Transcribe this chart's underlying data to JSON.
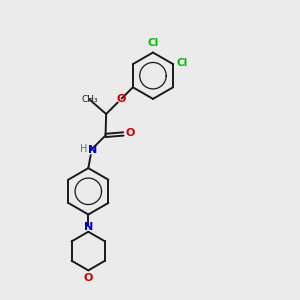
{
  "background_color": "#ebebeb",
  "bond_color": "#1a1a1a",
  "cl_color": "#00bb00",
  "o_color": "#cc0000",
  "n_color": "#0000cc",
  "h_color": "#607070",
  "lw": 1.4,
  "figsize": [
    3.0,
    3.0
  ],
  "dpi": 100,
  "xlim": [
    0,
    10
  ],
  "ylim": [
    0,
    10
  ],
  "ring_r": 0.78,
  "morph_r": 0.65,
  "font_size": 7.5
}
